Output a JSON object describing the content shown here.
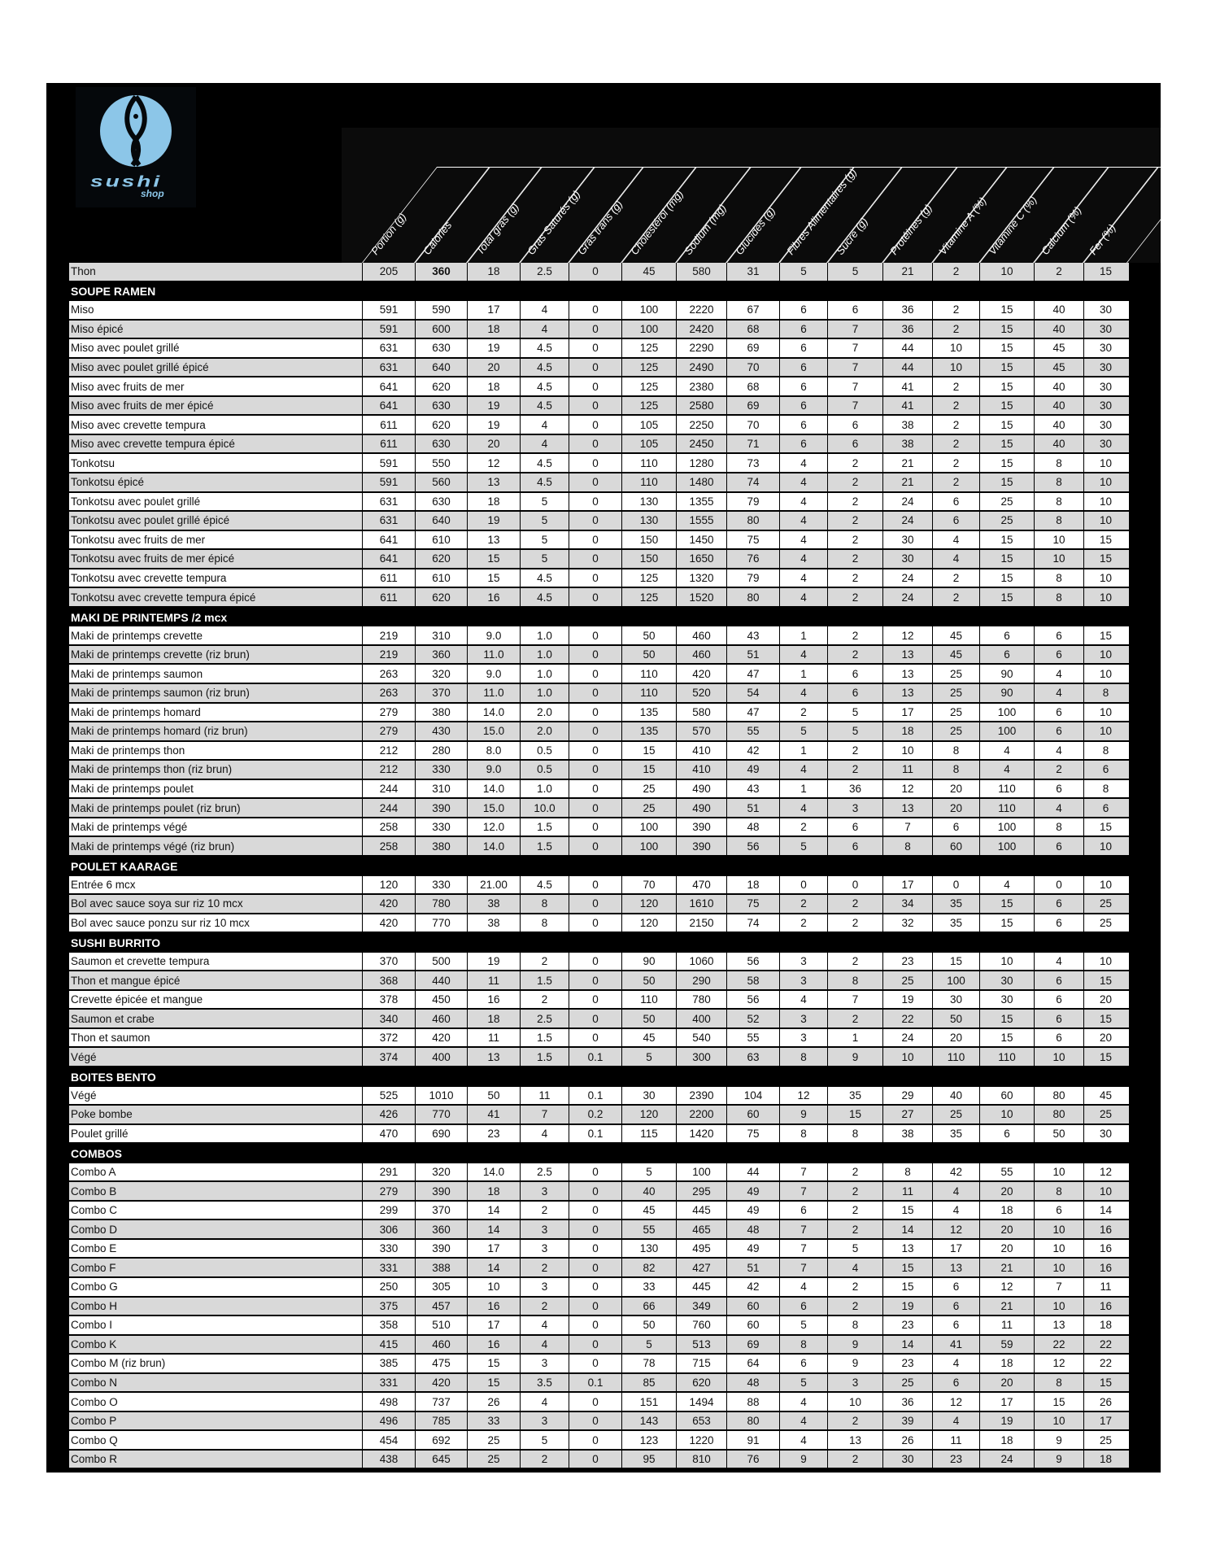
{
  "brand": {
    "name": "sushi",
    "sub": "shop",
    "color": "#8cc6e8"
  },
  "columns": [
    "Portion (g)",
    "Calories",
    "Total gras (g)",
    "Gras Saturés (g)",
    "Gras trans (g)",
    "Cholestérol (mg)",
    "Sodium (mg)",
    "Glucides (g)",
    "Fibres Alimentaires (g)",
    "Sucre (g)",
    "Protéines (g)",
    "Vitamine A (%)",
    "Vitamine C (%)",
    "Calcium (%)",
    "Fer (%)"
  ],
  "rows": [
    {
      "name": "Thon",
      "values": [
        "205",
        "360",
        "18",
        "2.5",
        "0",
        "45",
        "580",
        "31",
        "5",
        "5",
        "21",
        "2",
        "10",
        "2",
        "15"
      ]
    },
    {
      "section": "SOUPE RAMEN"
    },
    {
      "name": "Miso",
      "values": [
        "591",
        "590",
        "17",
        "4",
        "0",
        "100",
        "2220",
        "67",
        "6",
        "6",
        "36",
        "2",
        "15",
        "40",
        "30"
      ]
    },
    {
      "name": "Miso épicé",
      "values": [
        "591",
        "600",
        "18",
        "4",
        "0",
        "100",
        "2420",
        "68",
        "6",
        "7",
        "36",
        "2",
        "15",
        "40",
        "30"
      ]
    },
    {
      "name": "Miso avec poulet grillé",
      "values": [
        "631",
        "630",
        "19",
        "4.5",
        "0",
        "125",
        "2290",
        "69",
        "6",
        "7",
        "44",
        "10",
        "15",
        "45",
        "30"
      ]
    },
    {
      "name": "Miso avec poulet grillé épicé",
      "values": [
        "631",
        "640",
        "20",
        "4.5",
        "0",
        "125",
        "2490",
        "70",
        "6",
        "7",
        "44",
        "10",
        "15",
        "45",
        "30"
      ]
    },
    {
      "name": "Miso avec fruits de mer",
      "values": [
        "641",
        "620",
        "18",
        "4.5",
        "0",
        "125",
        "2380",
        "68",
        "6",
        "7",
        "41",
        "2",
        "15",
        "40",
        "30"
      ]
    },
    {
      "name": "Miso avec fruits de mer épicé",
      "values": [
        "641",
        "630",
        "19",
        "4.5",
        "0",
        "125",
        "2580",
        "69",
        "6",
        "7",
        "41",
        "2",
        "15",
        "40",
        "30"
      ]
    },
    {
      "name": "Miso avec crevette tempura",
      "values": [
        "611",
        "620",
        "19",
        "4",
        "0",
        "105",
        "2250",
        "70",
        "6",
        "6",
        "38",
        "2",
        "15",
        "40",
        "30"
      ]
    },
    {
      "name": "Miso avec crevette tempura épicé",
      "values": [
        "611",
        "630",
        "20",
        "4",
        "0",
        "105",
        "2450",
        "71",
        "6",
        "6",
        "38",
        "2",
        "15",
        "40",
        "30"
      ]
    },
    {
      "name": "Tonkotsu",
      "values": [
        "591",
        "550",
        "12",
        "4.5",
        "0",
        "110",
        "1280",
        "73",
        "4",
        "2",
        "21",
        "2",
        "15",
        "8",
        "10"
      ]
    },
    {
      "name": "Tonkotsu épicé",
      "values": [
        "591",
        "560",
        "13",
        "4.5",
        "0",
        "110",
        "1480",
        "74",
        "4",
        "2",
        "21",
        "2",
        "15",
        "8",
        "10"
      ]
    },
    {
      "name": "Tonkotsu avec poulet grillé",
      "values": [
        "631",
        "630",
        "18",
        "5",
        "0",
        "130",
        "1355",
        "79",
        "4",
        "2",
        "24",
        "6",
        "25",
        "8",
        "10"
      ]
    },
    {
      "name": "Tonkotsu avec poulet grillé épicé",
      "values": [
        "631",
        "640",
        "19",
        "5",
        "0",
        "130",
        "1555",
        "80",
        "4",
        "2",
        "24",
        "6",
        "25",
        "8",
        "10"
      ]
    },
    {
      "name": "Tonkotsu avec fruits de mer",
      "values": [
        "641",
        "610",
        "13",
        "5",
        "0",
        "150",
        "1450",
        "75",
        "4",
        "2",
        "30",
        "4",
        "15",
        "10",
        "15"
      ]
    },
    {
      "name": "Tonkotsu avec fruits de mer épicé",
      "values": [
        "641",
        "620",
        "15",
        "5",
        "0",
        "150",
        "1650",
        "76",
        "4",
        "2",
        "30",
        "4",
        "15",
        "10",
        "15"
      ]
    },
    {
      "name": "Tonkotsu avec crevette tempura",
      "values": [
        "611",
        "610",
        "15",
        "4.5",
        "0",
        "125",
        "1320",
        "79",
        "4",
        "2",
        "24",
        "2",
        "15",
        "8",
        "10"
      ]
    },
    {
      "name": "Tonkotsu avec crevette tempura épicé",
      "values": [
        "611",
        "620",
        "16",
        "4.5",
        "0",
        "125",
        "1520",
        "80",
        "4",
        "2",
        "24",
        "2",
        "15",
        "8",
        "10"
      ]
    },
    {
      "section": "MAKI DE PRINTEMPS /2 mcx"
    },
    {
      "name": "Maki de printemps crevette",
      "values": [
        "219",
        "310",
        "9.0",
        "1.0",
        "0",
        "50",
        "460",
        "43",
        "1",
        "2",
        "12",
        "45",
        "6",
        "6",
        "15"
      ]
    },
    {
      "name": "Maki de printemps crevette (riz brun)",
      "values": [
        "219",
        "360",
        "11.0",
        "1.0",
        "0",
        "50",
        "460",
        "51",
        "4",
        "2",
        "13",
        "45",
        "6",
        "6",
        "10"
      ]
    },
    {
      "name": "Maki de printemps saumon",
      "values": [
        "263",
        "320",
        "9.0",
        "1.0",
        "0",
        "110",
        "420",
        "47",
        "1",
        "6",
        "13",
        "25",
        "90",
        "4",
        "10"
      ]
    },
    {
      "name": "Maki de printemps saumon (riz brun)",
      "values": [
        "263",
        "370",
        "11.0",
        "1.0",
        "0",
        "110",
        "520",
        "54",
        "4",
        "6",
        "13",
        "25",
        "90",
        "4",
        "8"
      ]
    },
    {
      "name": "Maki de printemps homard",
      "values": [
        "279",
        "380",
        "14.0",
        "2.0",
        "0",
        "135",
        "580",
        "47",
        "2",
        "5",
        "17",
        "25",
        "100",
        "6",
        "10"
      ]
    },
    {
      "name": "Maki de printemps homard (riz brun)",
      "values": [
        "279",
        "430",
        "15.0",
        "2.0",
        "0",
        "135",
        "570",
        "55",
        "5",
        "5",
        "18",
        "25",
        "100",
        "6",
        "10"
      ]
    },
    {
      "name": "Maki de printemps thon",
      "values": [
        "212",
        "280",
        "8.0",
        "0.5",
        "0",
        "15",
        "410",
        "42",
        "1",
        "2",
        "10",
        "8",
        "4",
        "4",
        "8"
      ]
    },
    {
      "name": "Maki de printemps thon (riz brun)",
      "values": [
        "212",
        "330",
        "9.0",
        "0.5",
        "0",
        "15",
        "410",
        "49",
        "4",
        "2",
        "11",
        "8",
        "4",
        "2",
        "6"
      ]
    },
    {
      "name": "Maki de printemps poulet",
      "values": [
        "244",
        "310",
        "14.0",
        "1.0",
        "0",
        "25",
        "490",
        "43",
        "1",
        "36",
        "12",
        "20",
        "110",
        "6",
        "8"
      ]
    },
    {
      "name": "Maki de printemps poulet (riz brun)",
      "values": [
        "244",
        "390",
        "15.0",
        "10.0",
        "0",
        "25",
        "490",
        "51",
        "4",
        "3",
        "13",
        "20",
        "110",
        "4",
        "6"
      ]
    },
    {
      "name": "Maki de printemps végé",
      "values": [
        "258",
        "330",
        "12.0",
        "1.5",
        "0",
        "100",
        "390",
        "48",
        "2",
        "6",
        "7",
        "6",
        "100",
        "8",
        "15"
      ]
    },
    {
      "name": "Maki de printemps végé (riz brun)",
      "values": [
        "258",
        "380",
        "14.0",
        "1.5",
        "0",
        "100",
        "390",
        "56",
        "5",
        "6",
        "8",
        "60",
        "100",
        "6",
        "10"
      ]
    },
    {
      "section": "POULET KAARAGE"
    },
    {
      "name": "Entrée 6 mcx",
      "values": [
        "120",
        "330",
        "21.00",
        "4.5",
        "0",
        "70",
        "470",
        "18",
        "0",
        "0",
        "17",
        "0",
        "4",
        "0",
        "10"
      ]
    },
    {
      "name": "Bol avec sauce soya sur riz 10 mcx",
      "values": [
        "420",
        "780",
        "38",
        "8",
        "0",
        "120",
        "1610",
        "75",
        "2",
        "2",
        "34",
        "35",
        "15",
        "6",
        "25"
      ]
    },
    {
      "name": "Bol avec sauce ponzu sur riz 10 mcx",
      "values": [
        "420",
        "770",
        "38",
        "8",
        "0",
        "120",
        "2150",
        "74",
        "2",
        "2",
        "32",
        "35",
        "15",
        "6",
        "25"
      ]
    },
    {
      "section": "SUSHI BURRITO"
    },
    {
      "name": "Saumon et crevette tempura",
      "values": [
        "370",
        "500",
        "19",
        "2",
        "0",
        "90",
        "1060",
        "56",
        "3",
        "2",
        "23",
        "15",
        "10",
        "4",
        "10"
      ]
    },
    {
      "name": "Thon et mangue épicé",
      "values": [
        "368",
        "440",
        "11",
        "1.5",
        "0",
        "50",
        "290",
        "58",
        "3",
        "8",
        "25",
        "100",
        "30",
        "6",
        "15"
      ]
    },
    {
      "name": "Crevette épicée et mangue",
      "values": [
        "378",
        "450",
        "16",
        "2",
        "0",
        "110",
        "780",
        "56",
        "4",
        "7",
        "19",
        "30",
        "30",
        "6",
        "20"
      ]
    },
    {
      "name": "Saumon et crabe",
      "values": [
        "340",
        "460",
        "18",
        "2.5",
        "0",
        "50",
        "400",
        "52",
        "3",
        "2",
        "22",
        "50",
        "15",
        "6",
        "15"
      ]
    },
    {
      "name": "Thon et saumon",
      "values": [
        "372",
        "420",
        "11",
        "1.5",
        "0",
        "45",
        "540",
        "55",
        "3",
        "1",
        "24",
        "20",
        "15",
        "6",
        "20"
      ]
    },
    {
      "name": "Végé",
      "values": [
        "374",
        "400",
        "13",
        "1.5",
        "0.1",
        "5",
        "300",
        "63",
        "8",
        "9",
        "10",
        "110",
        "110",
        "10",
        "15"
      ]
    },
    {
      "section": "BOITES BENTO"
    },
    {
      "name": "Végé",
      "values": [
        "525",
        "1010",
        "50",
        "11",
        "0.1",
        "30",
        "2390",
        "104",
        "12",
        "35",
        "29",
        "40",
        "60",
        "80",
        "45"
      ]
    },
    {
      "name": "Poke bombe",
      "values": [
        "426",
        "770",
        "41",
        "7",
        "0.2",
        "120",
        "2200",
        "60",
        "9",
        "15",
        "27",
        "25",
        "10",
        "80",
        "25"
      ]
    },
    {
      "name": "Poulet grillé",
      "values": [
        "470",
        "690",
        "23",
        "4",
        "0.1",
        "115",
        "1420",
        "75",
        "8",
        "8",
        "38",
        "35",
        "6",
        "50",
        "30"
      ]
    },
    {
      "section": "COMBOS"
    },
    {
      "name": "Combo A",
      "values": [
        "291",
        "320",
        "14.0",
        "2.5",
        "0",
        "5",
        "100",
        "44",
        "7",
        "2",
        "8",
        "42",
        "55",
        "10",
        "12"
      ]
    },
    {
      "name": "Combo B",
      "values": [
        "279",
        "390",
        "18",
        "3",
        "0",
        "40",
        "295",
        "49",
        "7",
        "2",
        "11",
        "4",
        "20",
        "8",
        "10"
      ]
    },
    {
      "name": "Combo C",
      "values": [
        "299",
        "370",
        "14",
        "2",
        "0",
        "45",
        "445",
        "49",
        "6",
        "2",
        "15",
        "4",
        "18",
        "6",
        "14"
      ]
    },
    {
      "name": "Combo D",
      "values": [
        "306",
        "360",
        "14",
        "3",
        "0",
        "55",
        "465",
        "48",
        "7",
        "2",
        "14",
        "12",
        "20",
        "10",
        "16"
      ]
    },
    {
      "name": "Combo E",
      "values": [
        "330",
        "390",
        "17",
        "3",
        "0",
        "130",
        "495",
        "49",
        "7",
        "5",
        "13",
        "17",
        "20",
        "10",
        "16"
      ]
    },
    {
      "name": "Combo F",
      "values": [
        "331",
        "388",
        "14",
        "2",
        "0",
        "82",
        "427",
        "51",
        "7",
        "4",
        "15",
        "13",
        "21",
        "10",
        "16"
      ]
    },
    {
      "name": "Combo G",
      "values": [
        "250",
        "305",
        "10",
        "3",
        "0",
        "33",
        "445",
        "42",
        "4",
        "2",
        "15",
        "6",
        "12",
        "7",
        "11"
      ]
    },
    {
      "name": "Combo H",
      "values": [
        "375",
        "457",
        "16",
        "2",
        "0",
        "66",
        "349",
        "60",
        "6",
        "2",
        "19",
        "6",
        "21",
        "10",
        "16"
      ]
    },
    {
      "name": "Combo I",
      "values": [
        "358",
        "510",
        "17",
        "4",
        "0",
        "50",
        "760",
        "60",
        "5",
        "8",
        "23",
        "6",
        "11",
        "13",
        "18"
      ]
    },
    {
      "name": "Combo K",
      "values": [
        "415",
        "460",
        "16",
        "4",
        "0",
        "5",
        "513",
        "69",
        "8",
        "9",
        "14",
        "41",
        "59",
        "22",
        "22"
      ]
    },
    {
      "name": "Combo M (riz brun)",
      "values": [
        "385",
        "475",
        "15",
        "3",
        "0",
        "78",
        "715",
        "64",
        "6",
        "9",
        "23",
        "4",
        "18",
        "12",
        "22"
      ]
    },
    {
      "name": "Combo N",
      "values": [
        "331",
        "420",
        "15",
        "3.5",
        "0.1",
        "85",
        "620",
        "48",
        "5",
        "3",
        "25",
        "6",
        "20",
        "8",
        "15"
      ]
    },
    {
      "name": "Combo O",
      "values": [
        "498",
        "737",
        "26",
        "4",
        "0",
        "151",
        "1494",
        "88",
        "4",
        "10",
        "36",
        "12",
        "17",
        "15",
        "26"
      ]
    },
    {
      "name": "Combo P",
      "values": [
        "496",
        "785",
        "33",
        "3",
        "0",
        "143",
        "653",
        "80",
        "4",
        "2",
        "39",
        "4",
        "19",
        "10",
        "17"
      ]
    },
    {
      "name": "Combo Q",
      "values": [
        "454",
        "692",
        "25",
        "5",
        "0",
        "123",
        "1220",
        "91",
        "4",
        "13",
        "26",
        "11",
        "18",
        "9",
        "25"
      ]
    },
    {
      "name": "Combo R",
      "values": [
        "438",
        "645",
        "25",
        "2",
        "0",
        "95",
        "810",
        "76",
        "9",
        "2",
        "30",
        "23",
        "24",
        "9",
        "18"
      ]
    }
  ]
}
